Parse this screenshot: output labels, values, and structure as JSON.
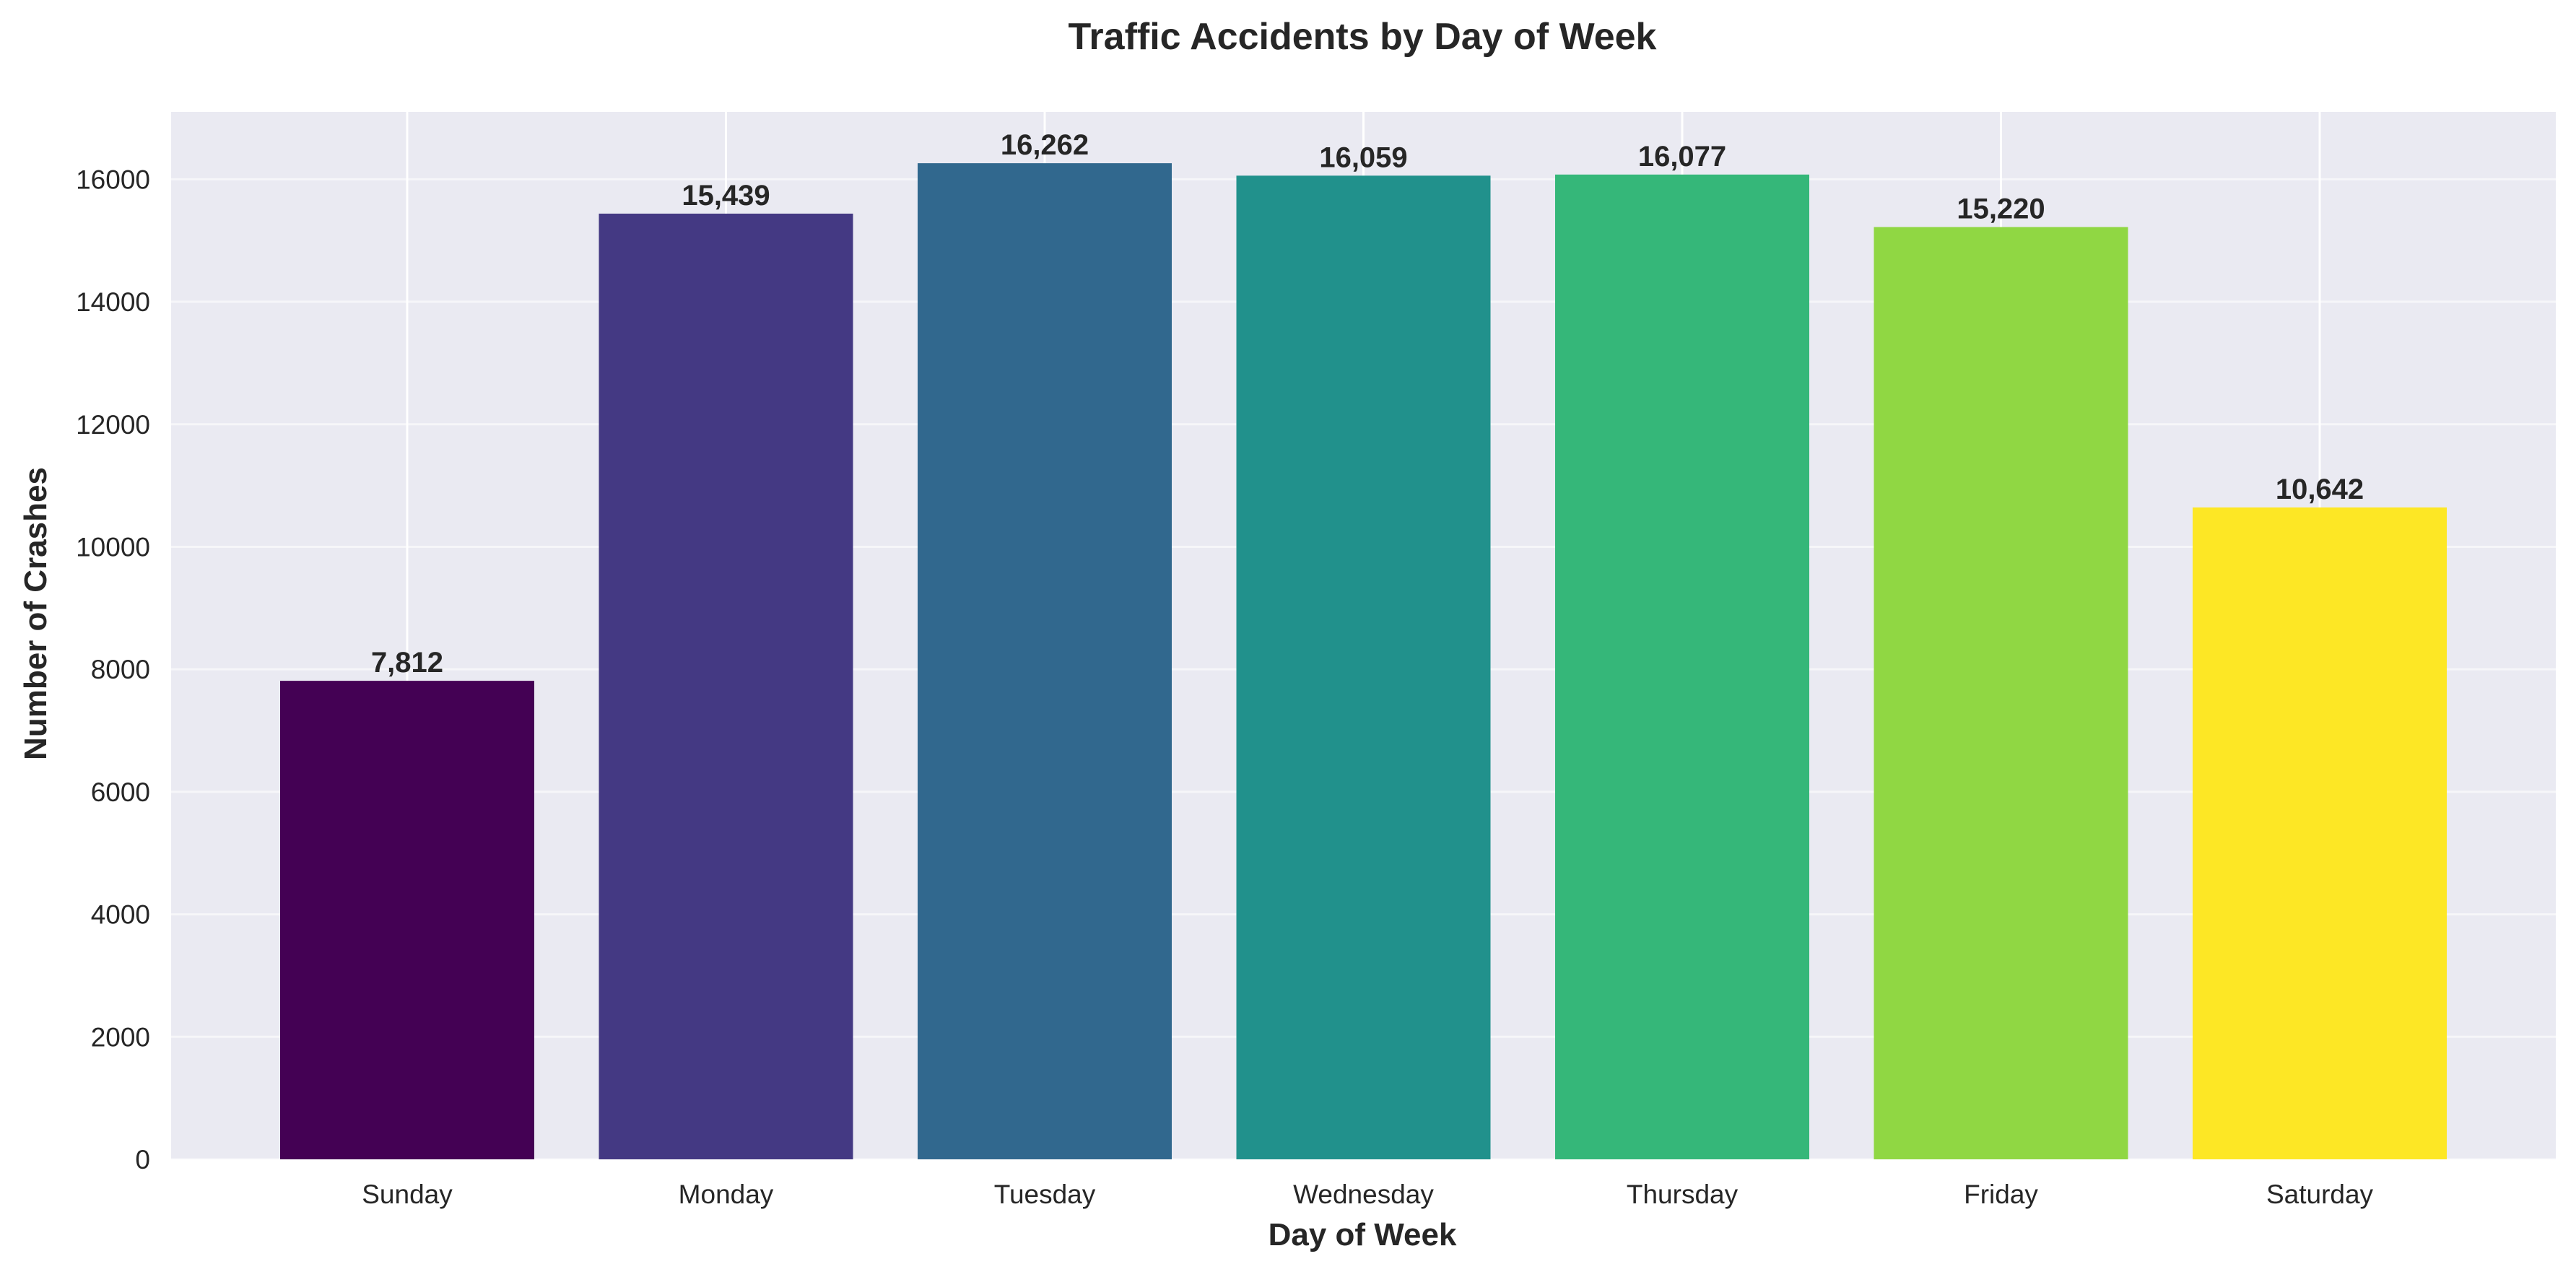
{
  "chart_data": {
    "type": "bar",
    "title": "Traffic Accidents by Day of Week",
    "xlabel": "Day of Week",
    "ylabel": "Number of Crashes",
    "categories": [
      "Sunday",
      "Monday",
      "Tuesday",
      "Wednesday",
      "Thursday",
      "Friday",
      "Saturday"
    ],
    "values": [
      7812,
      15439,
      16262,
      16059,
      16077,
      15220,
      10642
    ],
    "data_labels": [
      "7,812",
      "15,439",
      "16,262",
      "16,059",
      "16,077",
      "15,220",
      "10,642"
    ],
    "colors": [
      "#440154",
      "#443983",
      "#31688e",
      "#21918c",
      "#35b779",
      "#90d743",
      "#fde725"
    ],
    "ylim": [
      0,
      17100
    ],
    "yticks": [
      0,
      2000,
      4000,
      6000,
      8000,
      10000,
      12000,
      14000,
      16000
    ],
    "grid": true,
    "legend": "none",
    "style": {
      "plot_background": "#eaeaf2",
      "grid_color": "#ffffff",
      "text_color": "#262626"
    }
  }
}
